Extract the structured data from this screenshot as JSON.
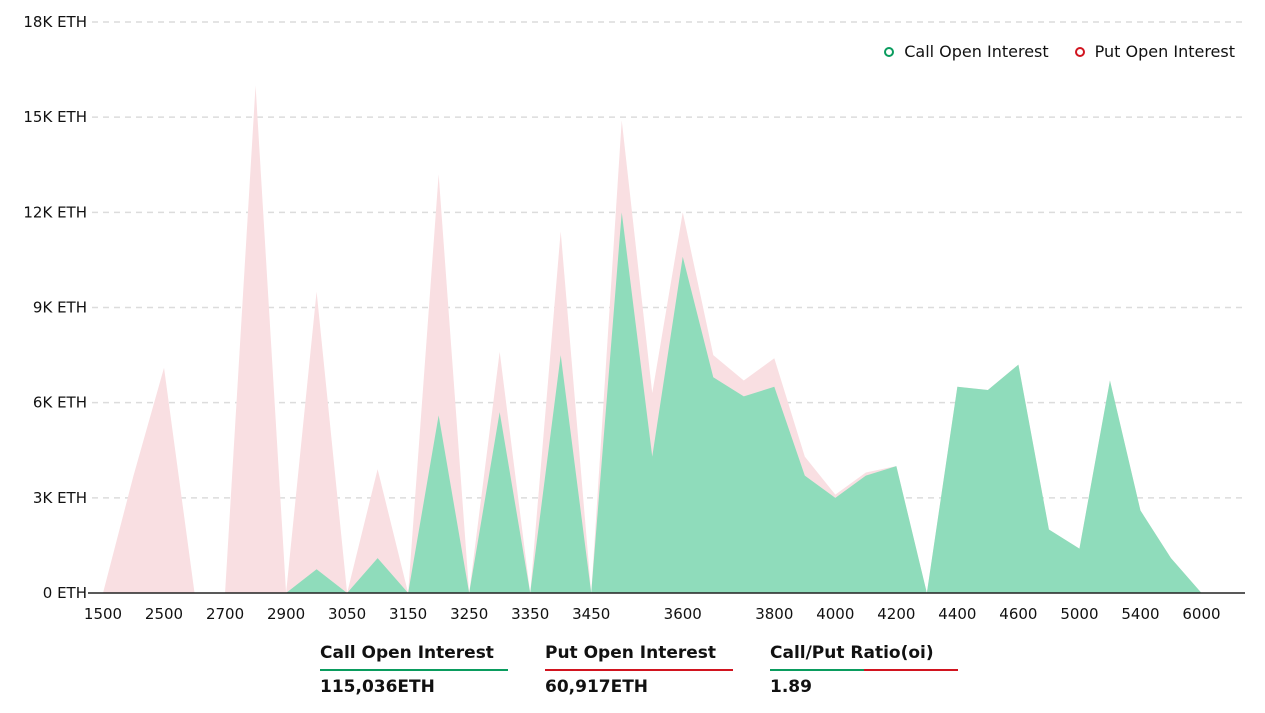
{
  "chart_data": {
    "type": "area",
    "y_ticks": [
      "18K ETH",
      "15K ETH",
      "12K ETH",
      "9K ETH",
      "6K ETH",
      "3K ETH",
      "0 ETH"
    ],
    "ylim": [
      0,
      18000
    ],
    "x_labels": [
      "1500",
      "2500",
      "2700",
      "2900",
      "3050",
      "3150",
      "3250",
      "3350",
      "3450",
      "3600",
      "3800",
      "4000",
      "4200",
      "4400",
      "4600",
      "5000",
      "5400",
      "6000"
    ],
    "strikes": [
      "1500",
      "2000",
      "2500",
      "2600",
      "2700",
      "2800",
      "2900",
      "3000",
      "3050",
      "3100",
      "3150",
      "3200",
      "3250",
      "3300",
      "3350",
      "3400",
      "3450",
      "3500",
      "3550",
      "3600",
      "3650",
      "3700",
      "3800",
      "3900",
      "4000",
      "4100",
      "4200",
      "4300",
      "4400",
      "4500",
      "4600",
      "4800",
      "5000",
      "5200",
      "5400",
      "5500",
      "6000",
      "6500"
    ],
    "series": [
      {
        "name": "Put  Open Interest",
        "color": "#f9dfe2",
        "values": [
          0,
          3700,
          7100,
          0,
          0,
          16000,
          0,
          9500,
          0,
          3900,
          0,
          13200,
          0,
          7600,
          0,
          11400,
          0,
          14900,
          6300,
          12000,
          7500,
          6700,
          7400,
          4300,
          3100,
          3800,
          4000,
          0,
          6500,
          6400,
          7200,
          2000,
          1400,
          6700,
          2600,
          1100,
          0,
          0
        ]
      },
      {
        "name": "Call Open Interest",
        "color": "#8fdcbb",
        "values": [
          0,
          0,
          0,
          0,
          0,
          0,
          0,
          750,
          0,
          1100,
          0,
          5600,
          0,
          5700,
          0,
          7500,
          0,
          12000,
          4300,
          10600,
          6800,
          6200,
          6500,
          3700,
          3000,
          3700,
          4000,
          0,
          6500,
          6400,
          7200,
          2000,
          1400,
          6700,
          2600,
          1100,
          0,
          0
        ]
      }
    ],
    "legend_position": "top-right",
    "grid": true
  },
  "legend": {
    "call_label": "Call Open Interest",
    "call_color": "#0a9c5e",
    "put_label": "Put  Open Interest",
    "put_color": "#d1141f"
  },
  "summary": {
    "call": {
      "label": "Call Open Interest",
      "value": "115,036ETH"
    },
    "put": {
      "label": "Put Open Interest",
      "value": "60,917ETH"
    },
    "ratio": {
      "label": "Call/Put Ratio(oi)",
      "value": "1.89"
    }
  }
}
